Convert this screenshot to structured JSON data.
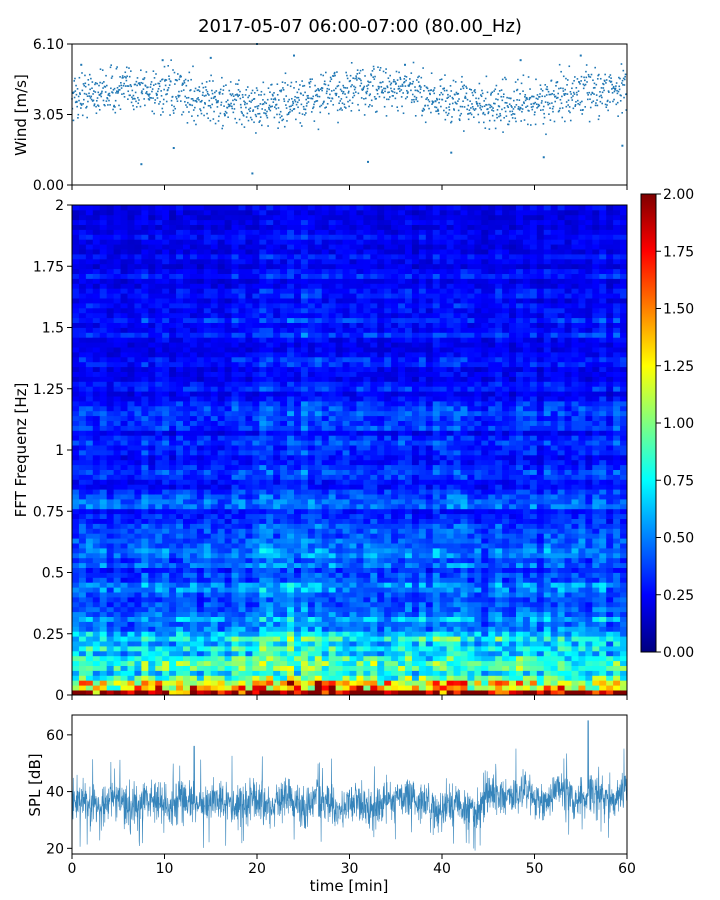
{
  "figure": {
    "title": "2017-05-07 06:00-07:00 (80.00_Hz)"
  },
  "chart_data": [
    {
      "type": "scatter",
      "name": "wind",
      "ylabel": "Wind [m/s]",
      "xlim": [
        0,
        60
      ],
      "ylim": [
        0,
        6.1
      ],
      "yticks": [
        0,
        3.05,
        6.1
      ],
      "ytick_labels": [
        "0.00",
        "3.05",
        "6.10"
      ],
      "color": "#1f77b4",
      "approx_points": [
        {
          "x": 0.5,
          "y": 3.6
        },
        {
          "x": 1.0,
          "y": 5.2
        },
        {
          "x": 3.0,
          "y": 3.9
        },
        {
          "x": 7.5,
          "y": 0.9
        },
        {
          "x": 9.8,
          "y": 5.4
        },
        {
          "x": 11.0,
          "y": 1.6
        },
        {
          "x": 15.0,
          "y": 5.5
        },
        {
          "x": 20.0,
          "y": 6.1
        },
        {
          "x": 19.5,
          "y": 0.5
        },
        {
          "x": 24.0,
          "y": 5.6
        },
        {
          "x": 32.0,
          "y": 1.0
        },
        {
          "x": 36.0,
          "y": 5.2
        },
        {
          "x": 41.0,
          "y": 1.4
        },
        {
          "x": 48.5,
          "y": 5.4
        },
        {
          "x": 51.0,
          "y": 1.2
        },
        {
          "x": 55.0,
          "y": 5.6
        },
        {
          "x": 59.5,
          "y": 1.7
        }
      ],
      "typical_center": 3.8,
      "typical_spread": 0.9
    },
    {
      "type": "heatmap",
      "name": "spectrogram",
      "ylabel": "FFT Frequenz [Hz]",
      "xlim": [
        0,
        60
      ],
      "ylim": [
        0,
        2
      ],
      "yticks": [
        0,
        0.25,
        0.5,
        0.75,
        1,
        1.25,
        1.5,
        1.75,
        2
      ],
      "ytick_labels": [
        "0",
        "0.25",
        "0.5",
        "0.75",
        "1",
        "1.25",
        "1.5",
        "1.75",
        "2"
      ],
      "colormap": "jet",
      "clim": [
        0,
        2
      ],
      "colorbar_ticks": [
        "0.00",
        "0.25",
        "0.50",
        "0.75",
        "1.00",
        "1.25",
        "1.50",
        "1.75",
        "2.00"
      ],
      "energy_profile": [
        {
          "freq": 0.0,
          "level": 1.6
        },
        {
          "freq": 0.05,
          "level": 1.0
        },
        {
          "freq": 0.15,
          "level": 0.75
        },
        {
          "freq": 0.25,
          "level": 0.55
        },
        {
          "freq": 0.5,
          "level": 0.4
        },
        {
          "freq": 1.0,
          "level": 0.3
        },
        {
          "freq": 2.0,
          "level": 0.22
        }
      ]
    },
    {
      "type": "line",
      "name": "spl",
      "ylabel": "SPL [dB]",
      "xlabel": "time [min]",
      "xlim": [
        0,
        60
      ],
      "ylim": [
        18,
        67
      ],
      "yticks": [
        20,
        40,
        60
      ],
      "ytick_labels": [
        "20",
        "40",
        "60"
      ],
      "xticks": [
        0,
        10,
        20,
        30,
        40,
        50,
        60
      ],
      "xtick_labels": [
        "0",
        "10",
        "20",
        "30",
        "40",
        "50",
        "60"
      ],
      "color": "#1f77b4",
      "baseline_segments": [
        {
          "from": 0,
          "to": 35,
          "mean": 36
        },
        {
          "from": 35,
          "to": 37,
          "mean": 39
        },
        {
          "from": 37,
          "to": 44.5,
          "mean": 35
        },
        {
          "from": 44.5,
          "to": 60,
          "mean": 38.5
        }
      ],
      "peaks": [
        {
          "x": 13.2,
          "y": 56
        },
        {
          "x": 55.8,
          "y": 65
        }
      ]
    }
  ]
}
